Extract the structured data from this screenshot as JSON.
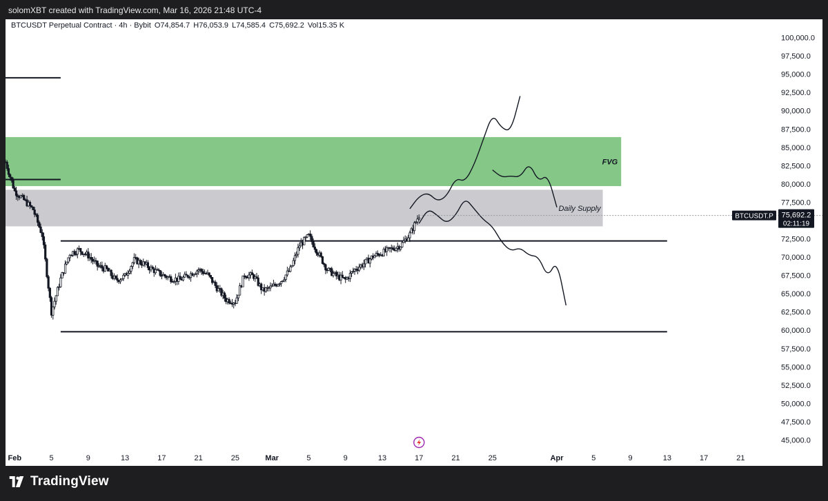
{
  "header": {
    "credit": "solomXBT created with TradingView.com, Mar 16, 2026 21:48 UTC-4"
  },
  "legend": {
    "symbol": "BTCUSDT Perpetual Contract · 4h · Bybit",
    "open": "O74,854.7",
    "high": "H76,053.9",
    "low": "L74,585.4",
    "close": "C75,692.2",
    "volume": "Vol15.35 K"
  },
  "price_tag": {
    "ticker": "BTCUSDT.P",
    "price": "75,692.2",
    "countdown": "02:11:19"
  },
  "footer": {
    "brand": "TradingView"
  },
  "colors": {
    "fvg": "#84c787",
    "supply": "#cbcbcf",
    "candle": "#131722",
    "background": "#ffffff",
    "frame": "#1e1e20",
    "tag": "#131722",
    "logo_accent": "#9c27b0"
  },
  "icons": {
    "flash": "flash-icon",
    "logo": "tradingview-logo-icon"
  },
  "chart_data": {
    "type": "candlestick",
    "timeframe": "4h",
    "y_range": [
      42500,
      102500
    ],
    "y_ticks": [
      100000,
      97500,
      95000,
      92500,
      90000,
      87500,
      85000,
      82500,
      80000,
      77500,
      75000,
      72500,
      70000,
      67500,
      65000,
      62500,
      60000,
      57500,
      55000,
      52500,
      50000,
      47500,
      45000
    ],
    "y_tick_labels": [
      "100,000.0",
      "97,500.0",
      "95,000.0",
      "92,500.0",
      "90,000.0",
      "87,500.0",
      "85,000.0",
      "82,500.0",
      "80,000.0",
      "77,500.0",
      "75,000.0",
      "72,500.0",
      "70,000.0",
      "67,500.0",
      "65,000.0",
      "62,500.0",
      "60,000.0",
      "57,500.0",
      "55,000.0",
      "52,500.0",
      "50,000.0",
      "47,500.0",
      "45,000.0"
    ],
    "x_range": [
      "2026-01-31",
      "2026-04-23"
    ],
    "x_ticks": [
      {
        "date": "2026-02-01",
        "label": "Feb",
        "bold": true
      },
      {
        "date": "2026-02-05",
        "label": "5"
      },
      {
        "date": "2026-02-09",
        "label": "9"
      },
      {
        "date": "2026-02-13",
        "label": "13"
      },
      {
        "date": "2026-02-17",
        "label": "17"
      },
      {
        "date": "2026-02-21",
        "label": "21"
      },
      {
        "date": "2026-02-25",
        "label": "25"
      },
      {
        "date": "2026-03-01",
        "label": "Mar",
        "bold": true
      },
      {
        "date": "2026-03-05",
        "label": "5"
      },
      {
        "date": "2026-03-09",
        "label": "9"
      },
      {
        "date": "2026-03-13",
        "label": "13"
      },
      {
        "date": "2026-03-17",
        "label": "17"
      },
      {
        "date": "2026-03-21",
        "label": "21"
      },
      {
        "date": "2026-03-25",
        "label": "25"
      },
      {
        "date": "2026-04-01",
        "label": "Apr",
        "bold": true
      },
      {
        "date": "2026-04-05",
        "label": "5"
      },
      {
        "date": "2026-04-09",
        "label": "9"
      },
      {
        "date": "2026-04-13",
        "label": "13"
      },
      {
        "date": "2026-04-17",
        "label": "17"
      },
      {
        "date": "2026-04-21",
        "label": "21"
      }
    ],
    "last_price": 75692.2,
    "zones": [
      {
        "label": "FVG",
        "from": "2026-01-31",
        "to": "2026-04-08",
        "low": 79700,
        "high": 86400
      },
      {
        "label": "Daily Supply",
        "from": "2026-01-31",
        "to": "2026-04-06",
        "low": 74200,
        "high": 79200
      }
    ],
    "levels": [
      {
        "price": 94500,
        "from": "2026-01-31",
        "to": "2026-02-06"
      },
      {
        "price": 80600,
        "from": "2026-01-31",
        "to": "2026-02-06"
      },
      {
        "price": 72200,
        "from": "2026-02-06",
        "to": "2026-04-13"
      },
      {
        "price": 59800,
        "from": "2026-02-06",
        "to": "2026-04-13"
      }
    ],
    "price_path": [
      [
        "2026-01-31",
        83000
      ],
      [
        "2026-02-01",
        79000
      ],
      [
        "2026-02-02",
        77800
      ],
      [
        "2026-02-03",
        76500
      ],
      [
        "2026-02-04",
        73000
      ],
      [
        "2026-02-05",
        62500
      ],
      [
        "2026-02-06",
        67000
      ],
      [
        "2026-02-07",
        70500
      ],
      [
        "2026-02-08",
        71000
      ],
      [
        "2026-02-09",
        70200
      ],
      [
        "2026-02-10",
        68800
      ],
      [
        "2026-02-11",
        68300
      ],
      [
        "2026-02-12",
        66800
      ],
      [
        "2026-02-13",
        67400
      ],
      [
        "2026-02-14",
        69600
      ],
      [
        "2026-02-15",
        69100
      ],
      [
        "2026-02-16",
        68300
      ],
      [
        "2026-02-17",
        67600
      ],
      [
        "2026-02-18",
        67100
      ],
      [
        "2026-02-19",
        66900
      ],
      [
        "2026-02-20",
        67600
      ],
      [
        "2026-02-21",
        68300
      ],
      [
        "2026-02-22",
        67600
      ],
      [
        "2026-02-23",
        65800
      ],
      [
        "2026-02-24",
        64200
      ],
      [
        "2026-02-25",
        63900
      ],
      [
        "2026-02-26",
        67600
      ],
      [
        "2026-02-27",
        67400
      ],
      [
        "2026-02-28",
        65400
      ],
      [
        "2026-03-01",
        65900
      ],
      [
        "2026-03-02",
        66800
      ],
      [
        "2026-03-03",
        68300
      ],
      [
        "2026-03-04",
        71600
      ],
      [
        "2026-03-05",
        72900
      ],
      [
        "2026-03-06",
        70600
      ],
      [
        "2026-03-07",
        68300
      ],
      [
        "2026-03-08",
        67400
      ],
      [
        "2026-03-09",
        66900
      ],
      [
        "2026-03-10",
        68300
      ],
      [
        "2026-03-11",
        69100
      ],
      [
        "2026-03-12",
        70100
      ],
      [
        "2026-03-13",
        70600
      ],
      [
        "2026-03-14",
        71100
      ],
      [
        "2026-03-15",
        71600
      ],
      [
        "2026-03-16",
        73100
      ],
      [
        "2026-03-17",
        75700
      ]
    ],
    "projections": [
      [
        [
          "2026-03-16",
          76600
        ],
        [
          "2026-03-17",
          78300
        ],
        [
          "2026-03-18",
          78800
        ],
        [
          "2026-03-19",
          77600
        ],
        [
          "2026-03-20",
          78300
        ],
        [
          "2026-03-21",
          80800
        ],
        [
          "2026-03-22",
          80300
        ],
        [
          "2026-03-23",
          82600
        ],
        [
          "2026-03-24",
          86100
        ],
        [
          "2026-03-25",
          89600
        ],
        [
          "2026-03-26",
          87600
        ],
        [
          "2026-03-27",
          87200
        ],
        [
          "2026-03-28",
          92000
        ]
      ],
      [
        [
          "2026-03-17",
          74600
        ],
        [
          "2026-03-18",
          76600
        ],
        [
          "2026-03-19",
          75700
        ],
        [
          "2026-03-20",
          74600
        ],
        [
          "2026-03-21",
          75700
        ],
        [
          "2026-03-22",
          78100
        ],
        [
          "2026-03-23",
          76600
        ],
        [
          "2026-03-24",
          75100
        ],
        [
          "2026-03-25",
          74200
        ],
        [
          "2026-03-26",
          72000
        ],
        [
          "2026-03-27",
          70800
        ],
        [
          "2026-03-28",
          71300
        ],
        [
          "2026-03-29",
          70200
        ],
        [
          "2026-03-30",
          70100
        ],
        [
          "2026-03-31",
          67200
        ],
        [
          "2026-04-01",
          69600
        ],
        [
          "2026-04-02",
          63400
        ]
      ],
      [
        [
          "2026-03-25",
          81900
        ],
        [
          "2026-03-26",
          80900
        ],
        [
          "2026-03-27",
          81100
        ],
        [
          "2026-03-28",
          80900
        ],
        [
          "2026-03-29",
          82900
        ],
        [
          "2026-03-30",
          80300
        ],
        [
          "2026-03-31",
          81300
        ],
        [
          "2026-04-01",
          76800
        ]
      ]
    ]
  }
}
